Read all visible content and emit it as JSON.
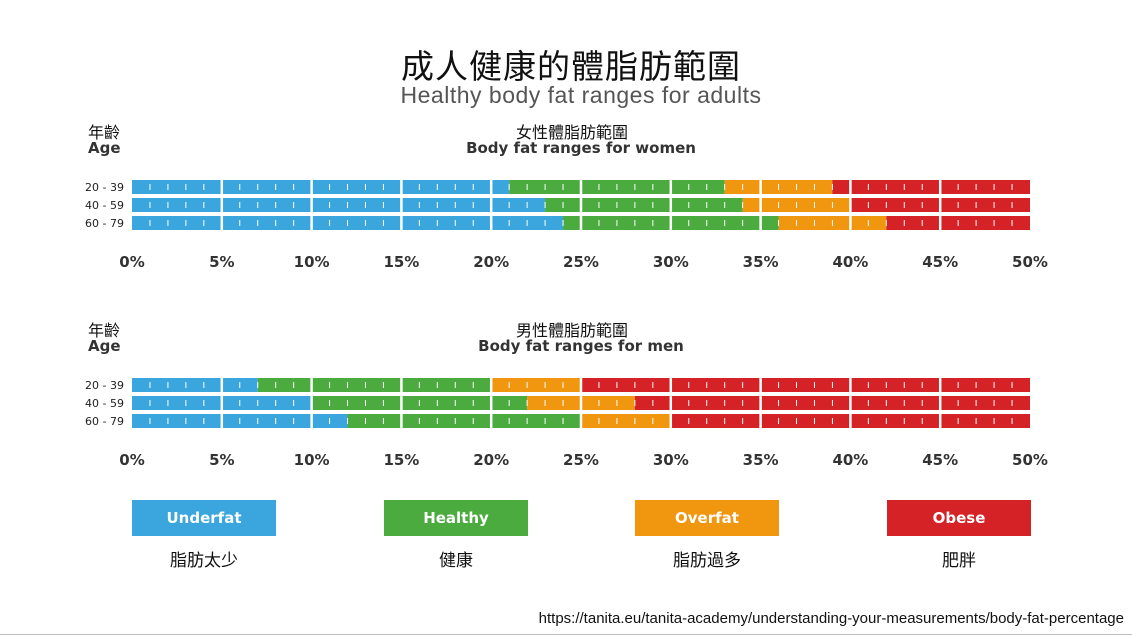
{
  "title_zh": "成人健康的體脂肪範圍",
  "title_en": "Healthy body fat ranges for adults",
  "colors": {
    "underfat": "#3aa6dd",
    "healthy": "#4bab3f",
    "overfat": "#f0960f",
    "obese": "#d42226"
  },
  "chart_data": [
    {
      "type": "bar",
      "orientation": "horizontal-stacked",
      "title_zh": "女性體脂肪範圍",
      "title": "Body fat ranges for women",
      "age_label_zh": "年齡",
      "age_label_en": "Age",
      "categories": [
        "20 - 39",
        "40 - 59",
        "60 - 79"
      ],
      "xlim": [
        0,
        50
      ],
      "xticks": [
        "0%",
        "5%",
        "10%",
        "15%",
        "20%",
        "25%",
        "30%",
        "35%",
        "40%",
        "45%",
        "50%"
      ],
      "series": [
        {
          "name": "Underfat",
          "range_ends": [
            21,
            23,
            24
          ]
        },
        {
          "name": "Healthy",
          "range_ends": [
            33,
            34,
            36
          ]
        },
        {
          "name": "Overfat",
          "range_ends": [
            39,
            40,
            42
          ]
        },
        {
          "name": "Obese",
          "range_ends": [
            50,
            50,
            50
          ]
        }
      ]
    },
    {
      "type": "bar",
      "orientation": "horizontal-stacked",
      "title_zh": "男性體脂肪範圍",
      "title": "Body fat ranges for men",
      "age_label_zh": "年齡",
      "age_label_en": "Age",
      "categories": [
        "20 - 39",
        "40 - 59",
        "60 - 79"
      ],
      "xlim": [
        0,
        50
      ],
      "xticks": [
        "0%",
        "5%",
        "10%",
        "15%",
        "20%",
        "25%",
        "30%",
        "35%",
        "40%",
        "45%",
        "50%"
      ],
      "series": [
        {
          "name": "Underfat",
          "range_ends": [
            7,
            10,
            12
          ]
        },
        {
          "name": "Healthy",
          "range_ends": [
            20,
            22,
            25
          ]
        },
        {
          "name": "Overfat",
          "range_ends": [
            25,
            28,
            30
          ]
        },
        {
          "name": "Obese",
          "range_ends": [
            50,
            50,
            50
          ]
        }
      ]
    }
  ],
  "legend": [
    {
      "label": "Underfat",
      "label_zh": "脂肪太少",
      "color": "#3aa6dd"
    },
    {
      "label": "Healthy",
      "label_zh": "健康",
      "color": "#4bab3f"
    },
    {
      "label": "Overfat",
      "label_zh": "脂肪過多",
      "color": "#f0960f"
    },
    {
      "label": "Obese",
      "label_zh": "肥胖",
      "color": "#d42226"
    }
  ],
  "source": "https://tanita.eu/tanita-academy/understanding-your-measurements/body-fat-percentage"
}
